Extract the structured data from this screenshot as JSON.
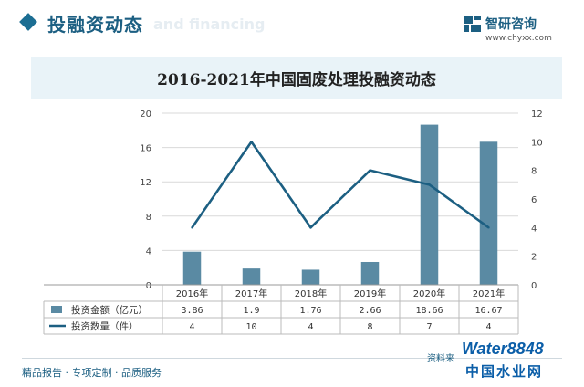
{
  "header": {
    "title": "投融资动态",
    "watermark": "and financing"
  },
  "brand": {
    "name": "智研咨询",
    "url": "www.chyxx.com"
  },
  "footer": {
    "slogan": "精品报告 · 专项定制 · 品质服务",
    "source": "资料来",
    "logo_line1": "Water8848",
    "logo_line2": "中国水业网"
  },
  "colors": {
    "bar": "#5a8aa3",
    "line": "#1c5f82",
    "title_band": "#e9f3f8",
    "grid": "#d9d9d9"
  },
  "chart_data": {
    "type": "bar",
    "title": "2016-2021年中国固废处理投融资动态",
    "categories": [
      "2016年",
      "2017年",
      "2018年",
      "2019年",
      "2020年",
      "2021年"
    ],
    "series": [
      {
        "name": "投资金额（亿元）",
        "type": "bar",
        "axis": "left",
        "values": [
          3.86,
          1.9,
          1.76,
          2.66,
          18.66,
          16.67
        ],
        "display": [
          "3.86",
          "1.9",
          "1.76",
          "2.66",
          "18.66",
          "16.67"
        ]
      },
      {
        "name": "投资数量（件）",
        "type": "line",
        "axis": "right",
        "values": [
          4,
          10,
          4,
          8,
          7,
          4
        ],
        "display": [
          "4",
          "10",
          "4",
          "8",
          "7",
          "4"
        ]
      }
    ],
    "ylim_left": [
      0,
      20
    ],
    "yticks_left": [
      "0",
      "4",
      "8",
      "12",
      "16",
      "20"
    ],
    "ylim_right": [
      0,
      12
    ],
    "yticks_right": [
      "0",
      "2",
      "4",
      "6",
      "8",
      "10",
      "12"
    ],
    "grid": true,
    "legend": "data-table-below"
  }
}
